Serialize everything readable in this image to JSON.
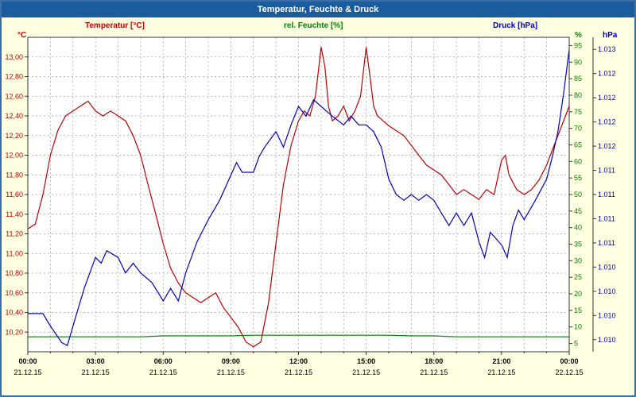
{
  "window": {
    "title": "Temperatur, Feuchte & Druck"
  },
  "theme": {
    "background": "#ffffe1",
    "border": "#3a6ea5",
    "titlebar_bg": "#1b5c9e",
    "titlebar_text": "#ffffff",
    "plot_bg": "#ffffff",
    "grid_color": "#a0a0a0",
    "axis_color": "#333333",
    "tick_text": "#000000"
  },
  "legend": {
    "temperature": "Temperatur [°C]",
    "humidity": "rel. Feuchte [%]",
    "pressure": "Druck [hPa]"
  },
  "axis_units": {
    "temperature": "°C",
    "humidity": "%",
    "pressure": "hPa"
  },
  "chart_data": {
    "type": "line",
    "title": "Temperatur, Feuchte & Druck",
    "x_label": "Zeit",
    "x_range_hours": [
      0,
      24
    ],
    "grid": true,
    "x_ticks": [
      {
        "h": 0,
        "time": "00:00",
        "date": "21.12.15"
      },
      {
        "h": 3,
        "time": "03:00",
        "date": "21.12.15"
      },
      {
        "h": 6,
        "time": "06:00",
        "date": "21.12.15"
      },
      {
        "h": 9,
        "time": "09:00",
        "date": "21.12.15"
      },
      {
        "h": 12,
        "time": "12:00",
        "date": "21.12.15"
      },
      {
        "h": 15,
        "time": "15:00",
        "date": "21.12.15"
      },
      {
        "h": 18,
        "time": "18:00",
        "date": "21.12.15"
      },
      {
        "h": 21,
        "time": "21:00",
        "date": "21.12.15"
      },
      {
        "h": 24,
        "time": "00:00",
        "date": "22.12.15"
      }
    ],
    "axes": {
      "temp": {
        "unit": "°C",
        "min": 10.0,
        "max": 13.2,
        "color": "#c00000",
        "position": "left",
        "ticks": [
          {
            "v": 13.0,
            "label": "13,00"
          },
          {
            "v": 12.8,
            "label": "12,80"
          },
          {
            "v": 12.6,
            "label": "12,60"
          },
          {
            "v": 12.4,
            "label": "12,40"
          },
          {
            "v": 12.2,
            "label": "12,20"
          },
          {
            "v": 12.0,
            "label": "12,00"
          },
          {
            "v": 11.8,
            "label": "11,80"
          },
          {
            "v": 11.6,
            "label": "11,60"
          },
          {
            "v": 11.4,
            "label": "11,40"
          },
          {
            "v": 11.2,
            "label": "11,20"
          },
          {
            "v": 11.0,
            "label": "11,00"
          },
          {
            "v": 10.8,
            "label": "10,80"
          },
          {
            "v": 10.6,
            "label": "10,60"
          },
          {
            "v": 10.4,
            "label": "10,40"
          },
          {
            "v": 10.2,
            "label": "10,20"
          }
        ]
      },
      "humidity": {
        "unit": "%",
        "min": 2.5,
        "max": 97.5,
        "color": "#008000",
        "position": "right-inner",
        "ticks": [
          {
            "v": 95,
            "label": "95"
          },
          {
            "v": 90,
            "label": "90"
          },
          {
            "v": 85,
            "label": "85"
          },
          {
            "v": 80,
            "label": "80"
          },
          {
            "v": 75,
            "label": "75"
          },
          {
            "v": 70,
            "label": "70"
          },
          {
            "v": 65,
            "label": "65"
          },
          {
            "v": 60,
            "label": "60"
          },
          {
            "v": 55,
            "label": "55"
          },
          {
            "v": 50,
            "label": "50"
          },
          {
            "v": 45,
            "label": "45"
          },
          {
            "v": 40,
            "label": "40"
          },
          {
            "v": 35,
            "label": "35"
          },
          {
            "v": 30,
            "label": "30"
          },
          {
            "v": 25,
            "label": "25"
          },
          {
            "v": 20,
            "label": "20"
          },
          {
            "v": 15,
            "label": "15"
          },
          {
            "v": 10,
            "label": "10"
          },
          {
            "v": 5,
            "label": "5"
          }
        ]
      },
      "pressure": {
        "unit": "hPa",
        "min": 1.009875,
        "max": 1.013125,
        "color": "#0000c0",
        "position": "right-outer",
        "ticks": [
          {
            "v": 1.013,
            "label": "1.013"
          },
          {
            "v": 1.01275,
            "label": "1.012"
          },
          {
            "v": 1.0125,
            "label": "1.012"
          },
          {
            "v": 1.01225,
            "label": "1.012"
          },
          {
            "v": 1.012,
            "label": "1.012"
          },
          {
            "v": 1.01175,
            "label": "1.011"
          },
          {
            "v": 1.0115,
            "label": "1.011"
          },
          {
            "v": 1.01125,
            "label": "1.011"
          },
          {
            "v": 1.011,
            "label": "1.011"
          },
          {
            "v": 1.01075,
            "label": "1.010"
          },
          {
            "v": 1.0105,
            "label": "1.010"
          },
          {
            "v": 1.01025,
            "label": "1.010"
          },
          {
            "v": 1.01,
            "label": "1.010"
          }
        ]
      }
    },
    "series": [
      {
        "name": "Temperatur [°C]",
        "axis": "temp",
        "color": "#c00000",
        "x": [
          0,
          0.33,
          0.67,
          1,
          1.33,
          1.67,
          2,
          2.33,
          2.67,
          3,
          3.33,
          3.67,
          4,
          4.33,
          4.67,
          5,
          5.33,
          5.67,
          6,
          6.33,
          6.67,
          7,
          7.33,
          7.67,
          8,
          8.33,
          8.67,
          9,
          9.33,
          9.67,
          10,
          10.33,
          10.67,
          11,
          11.33,
          11.67,
          12,
          12.25,
          12.5,
          12.75,
          13,
          13.17,
          13.33,
          13.5,
          13.75,
          14,
          14.25,
          14.5,
          14.75,
          15,
          15.17,
          15.33,
          15.5,
          15.75,
          16,
          16.33,
          16.67,
          17,
          17.33,
          17.67,
          18,
          18.33,
          18.67,
          19,
          19.33,
          19.67,
          20,
          20.33,
          20.67,
          21,
          21.17,
          21.33,
          21.67,
          22,
          22.33,
          22.67,
          23,
          23.33,
          23.67,
          24
        ],
        "values": [
          11.25,
          11.3,
          11.6,
          12.0,
          12.25,
          12.4,
          12.45,
          12.5,
          12.55,
          12.45,
          12.4,
          12.45,
          12.4,
          12.35,
          12.2,
          12.0,
          11.7,
          11.4,
          11.1,
          10.85,
          10.7,
          10.6,
          10.55,
          10.5,
          10.55,
          10.6,
          10.45,
          10.35,
          10.25,
          10.1,
          10.05,
          10.1,
          10.5,
          11.1,
          11.7,
          12.1,
          12.35,
          12.45,
          12.4,
          12.6,
          13.1,
          12.9,
          12.5,
          12.35,
          12.4,
          12.5,
          12.35,
          12.45,
          12.6,
          13.1,
          12.8,
          12.5,
          12.4,
          12.35,
          12.3,
          12.25,
          12.2,
          12.1,
          12.0,
          11.9,
          11.85,
          11.8,
          11.7,
          11.6,
          11.65,
          11.6,
          11.55,
          11.65,
          11.6,
          11.95,
          12.0,
          11.8,
          11.65,
          11.6,
          11.65,
          11.75,
          11.9,
          12.1,
          12.3,
          12.5
        ]
      },
      {
        "name": "rel. Feuchte [%]",
        "axis": "humidity",
        "color": "#008000",
        "x": [
          0,
          1,
          2,
          3,
          4,
          5,
          6,
          7,
          8,
          9,
          10,
          11,
          12,
          13,
          14,
          15,
          16,
          17,
          18,
          19,
          20,
          21,
          22,
          23,
          24
        ],
        "values": [
          7,
          7,
          7,
          7,
          7,
          7,
          7.3,
          7.3,
          7.3,
          7.3,
          7.5,
          7.5,
          7.5,
          7.5,
          7.5,
          7.5,
          7.5,
          7.3,
          7.3,
          7,
          7,
          7,
          7,
          7,
          7
        ]
      },
      {
        "name": "Druck [hPa]",
        "axis": "pressure",
        "color": "#0000c0",
        "x": [
          0,
          0.67,
          1,
          1.5,
          1.75,
          2,
          2.5,
          3,
          3.25,
          3.5,
          4,
          4.33,
          4.67,
          5,
          5.5,
          6,
          6.33,
          6.67,
          7,
          7.5,
          8,
          8.5,
          9,
          9.25,
          9.5,
          10,
          10.25,
          10.5,
          11,
          11.33,
          11.67,
          12,
          12.33,
          12.67,
          13,
          13.5,
          14,
          14.33,
          14.67,
          15,
          15.33,
          15.67,
          16,
          16.33,
          16.67,
          17,
          17.33,
          17.67,
          18,
          18.33,
          18.67,
          19,
          19.33,
          19.67,
          20,
          20.25,
          20.5,
          21,
          21.25,
          21.5,
          21.75,
          22,
          22.5,
          23,
          23.25,
          23.5,
          23.75,
          24
        ],
        "values": [
          1.01027,
          1.01027,
          1.01014,
          1.00997,
          1.00994,
          1.01014,
          1.01053,
          1.01085,
          1.01079,
          1.01092,
          1.01085,
          1.01069,
          1.01079,
          1.01069,
          1.01059,
          1.0104,
          1.01053,
          1.0104,
          1.01069,
          1.01101,
          1.01124,
          1.01144,
          1.0117,
          1.01183,
          1.01173,
          1.01173,
          1.01189,
          1.01199,
          1.01215,
          1.01199,
          1.01222,
          1.01241,
          1.01231,
          1.01248,
          1.01241,
          1.01231,
          1.01222,
          1.01231,
          1.01222,
          1.01222,
          1.01215,
          1.01199,
          1.01166,
          1.0115,
          1.01144,
          1.0115,
          1.01144,
          1.0115,
          1.01144,
          1.01131,
          1.01118,
          1.01131,
          1.01118,
          1.01131,
          1.01101,
          1.01085,
          1.01111,
          1.01098,
          1.01085,
          1.01118,
          1.01134,
          1.01124,
          1.01144,
          1.01166,
          1.01189,
          1.01215,
          1.01254,
          1.013
        ]
      }
    ]
  }
}
